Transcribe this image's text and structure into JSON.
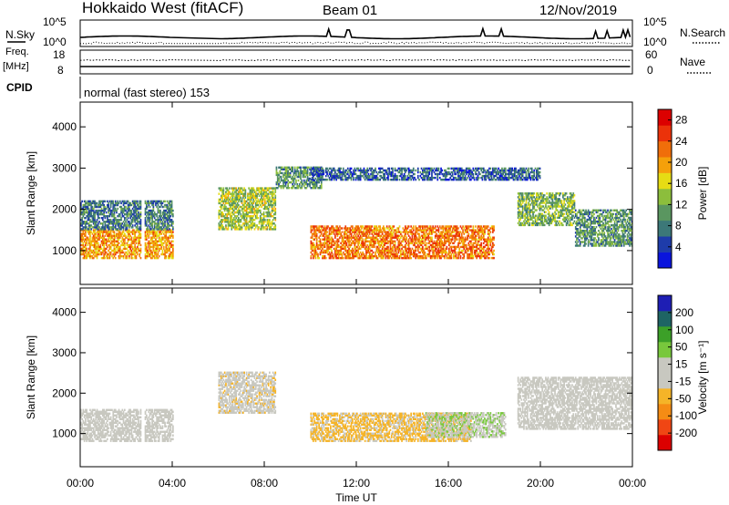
{
  "header": {
    "station": "Hokkaido West (fitACF)",
    "beam": "Beam 01",
    "date": "12/Nov/2019"
  },
  "summary": {
    "nsky_label": "N.Sky",
    "nsky_ticks": [
      "10^5",
      "10^0"
    ],
    "nsearch_label": "N.Search",
    "nsearch_ticks": [
      "10^5",
      "10^0"
    ],
    "freq_label": "Freq.",
    "freq_unit": "[MHz]",
    "freq_ticks": [
      "18",
      "8"
    ],
    "nave_label": "Nave",
    "nave_ticks": [
      "60",
      "0"
    ],
    "cpid_label": "CPID",
    "cpid_text": "normal (fast stereo) 153"
  },
  "colors": {
    "power_scale": [
      "#0a14dc",
      "#1e3caa",
      "#3c7878",
      "#5a9660",
      "#8cbe3c",
      "#e6dc14",
      "#f5a00a",
      "#f06e0a",
      "#eb320a",
      "#dc0000"
    ],
    "velocity_scale": [
      "#dc0000",
      "#f04614",
      "#f58c14",
      "#f5b428",
      "#c8c8c0",
      "#c8c8c0",
      "#78c83c",
      "#3ca028",
      "#1e6464",
      "#1e1eb4"
    ]
  },
  "time_ticks": [
    "00:00",
    "04:00",
    "08:00",
    "12:00",
    "16:00",
    "20:00",
    "00:00"
  ],
  "x_axis_label": "Time UT",
  "chart_data": [
    {
      "type": "heatmap",
      "panel": "power",
      "x": {
        "label": "Time UT",
        "unit": "hours",
        "range": [
          0,
          24
        ],
        "ticks": [
          "00:00",
          "04:00",
          "08:00",
          "12:00",
          "16:00",
          "20:00",
          "00:00"
        ]
      },
      "y": {
        "label": "Slant Range [km]",
        "range": [
          180,
          4600
        ],
        "ticks": [
          1000,
          2000,
          3000,
          4000
        ]
      },
      "colorbar": {
        "label": "Power [dB]",
        "ticks": [
          4,
          8,
          12,
          16,
          20,
          24,
          28
        ],
        "range": [
          0,
          30
        ]
      },
      "data_gaps_hours": [
        [
          2.6,
          2.75
        ],
        [
          4.0,
          6.0
        ]
      ],
      "echo_bands": [
        {
          "t0": 0.0,
          "t1": 4.0,
          "r0": 800,
          "r1": 1500,
          "level": 20
        },
        {
          "t0": 0.0,
          "t1": 4.0,
          "r0": 1500,
          "r1": 2200,
          "level": 8
        },
        {
          "t0": 6.0,
          "t1": 8.5,
          "r0": 1500,
          "r1": 2500,
          "level": 14
        },
        {
          "t0": 8.5,
          "t1": 10.5,
          "r0": 2500,
          "r1": 3000,
          "level": 10
        },
        {
          "t0": 10.0,
          "t1": 18.0,
          "r0": 800,
          "r1": 1600,
          "level": 22
        },
        {
          "t0": 10.0,
          "t1": 20.0,
          "r0": 2700,
          "r1": 3000,
          "level": 6
        },
        {
          "t0": 19.0,
          "t1": 21.5,
          "r0": 1600,
          "r1": 2400,
          "level": 12
        },
        {
          "t0": 21.5,
          "t1": 24.0,
          "r0": 1100,
          "r1": 2000,
          "level": 10
        }
      ]
    },
    {
      "type": "heatmap",
      "panel": "velocity",
      "x": {
        "label": "Time UT",
        "unit": "hours",
        "range": [
          0,
          24
        ],
        "ticks": [
          "00:00",
          "04:00",
          "08:00",
          "12:00",
          "16:00",
          "20:00",
          "00:00"
        ]
      },
      "y": {
        "label": "Slant Range [km]",
        "range": [
          180,
          4600
        ],
        "ticks": [
          1000,
          2000,
          3000,
          4000
        ]
      },
      "colorbar": {
        "label": "Velocity [m s⁻¹]",
        "ticks": [
          200,
          100,
          50,
          15,
          -15,
          -50,
          -100,
          -200
        ],
        "range": [
          -250,
          250
        ]
      },
      "data_gaps_hours": [
        [
          2.6,
          2.75
        ],
        [
          4.0,
          6.0
        ]
      ],
      "echo_bands": [
        {
          "t0": 0.0,
          "t1": 4.0,
          "r0": 800,
          "r1": 1600,
          "level": 0
        },
        {
          "t0": 6.0,
          "t1": 8.5,
          "r0": 1500,
          "r1": 2500,
          "level": -30
        },
        {
          "t0": 10.0,
          "t1": 17.0,
          "r0": 800,
          "r1": 1500,
          "level": -60
        },
        {
          "t0": 15.0,
          "t1": 18.5,
          "r0": 900,
          "r1": 1500,
          "level": 40
        },
        {
          "t0": 19.0,
          "t1": 24.0,
          "r0": 1100,
          "r1": 2400,
          "level": 0
        }
      ]
    }
  ]
}
